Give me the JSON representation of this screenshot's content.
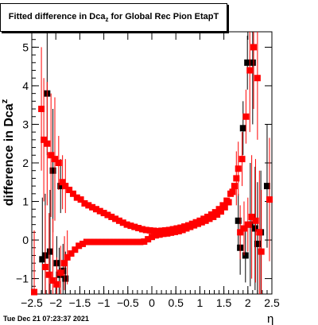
{
  "chart_data": {
    "type": "scatter",
    "title_main": "Fitted difference in Dca",
    "title_sub": "z",
    "title_rest": " for Global Rec Pion EtapT",
    "ylabel_main": "difference in Dca",
    "ylabel_sub": "z",
    "xlabel": "η",
    "xlim": [
      -2.5,
      2.5
    ],
    "ylim": [
      -1.4,
      5.4
    ],
    "xticks": [
      "−2.5",
      "−2",
      "−1.5",
      "−1",
      "−0.5",
      "0",
      "0.5",
      "1",
      "1.5",
      "2",
      "2.5"
    ],
    "yticks": [
      "−1",
      "0",
      "1",
      "2",
      "3",
      "4",
      "5"
    ],
    "grid": false,
    "colors": {
      "black_series": "#000000",
      "red_series": "#ff0000"
    },
    "series": [
      {
        "marker": "square",
        "color": "#000000",
        "points": [
          [
            -2.28,
            -0.5
          ],
          [
            -2.22,
            -0.4
          ],
          [
            -2.18,
            3.8
          ],
          [
            -2.12,
            -0.3
          ],
          [
            -2.06,
            1.8
          ],
          [
            -1.98,
            -0.6
          ],
          [
            -1.93,
            -0.9
          ],
          [
            -1.9,
            1.4
          ],
          [
            -1.85,
            -0.8
          ],
          [
            -1.8,
            -1.0
          ],
          [
            1.8,
            0.5
          ],
          [
            1.84,
            -0.2
          ],
          [
            1.9,
            2.9
          ],
          [
            1.95,
            -0.4
          ],
          [
            1.99,
            4.6
          ],
          [
            2.05,
            0.4
          ],
          [
            2.1,
            4.6
          ],
          [
            2.15,
            0.3
          ],
          [
            2.2,
            -0.1
          ],
          [
            2.27,
            0.2
          ],
          [
            2.4,
            1.4
          ]
        ]
      },
      {
        "marker": "square",
        "color": "#ff0000",
        "points": [
          [
            -2.45,
            -1.35
          ],
          [
            -2.3,
            3.4
          ],
          [
            -2.25,
            2.6
          ],
          [
            -2.22,
            -0.7
          ],
          [
            -2.18,
            2.5
          ],
          [
            -2.14,
            -0.9
          ],
          [
            -2.1,
            2.2
          ],
          [
            -2.06,
            -1.05
          ],
          [
            -2.02,
            2.1
          ],
          [
            -1.98,
            -1.15
          ],
          [
            -1.94,
            2.0
          ],
          [
            -1.9,
            -0.85
          ],
          [
            -1.86,
            1.5
          ],
          [
            -1.82,
            -0.6
          ],
          [
            -1.8,
            1.4
          ],
          [
            -1.76,
            -0.45
          ],
          [
            -1.72,
            1.3
          ],
          [
            -1.68,
            -0.35
          ],
          [
            -1.64,
            1.2
          ],
          [
            -1.6,
            -0.25
          ],
          [
            -1.56,
            1.1
          ],
          [
            -1.52,
            -0.15
          ],
          [
            -1.48,
            1.05
          ],
          [
            -1.44,
            -0.1
          ],
          [
            -1.4,
            0.95
          ],
          [
            -1.36,
            -0.05
          ],
          [
            -1.32,
            0.9
          ],
          [
            -1.28,
            -0.05
          ],
          [
            -1.24,
            0.85
          ],
          [
            -1.2,
            -0.05
          ],
          [
            -1.16,
            0.8
          ],
          [
            -1.12,
            -0.05
          ],
          [
            -1.08,
            0.75
          ],
          [
            -1.04,
            -0.05
          ],
          [
            -1.0,
            0.7
          ],
          [
            -0.96,
            -0.05
          ],
          [
            -0.92,
            0.65
          ],
          [
            -0.88,
            -0.05
          ],
          [
            -0.84,
            0.6
          ],
          [
            -0.8,
            -0.05
          ],
          [
            -0.76,
            0.55
          ],
          [
            -0.72,
            -0.05
          ],
          [
            -0.68,
            0.5
          ],
          [
            -0.64,
            -0.05
          ],
          [
            -0.6,
            0.45
          ],
          [
            -0.56,
            -0.05
          ],
          [
            -0.52,
            0.4
          ],
          [
            -0.48,
            -0.05
          ],
          [
            -0.44,
            0.37
          ],
          [
            -0.4,
            -0.05
          ],
          [
            -0.36,
            0.34
          ],
          [
            -0.32,
            -0.05
          ],
          [
            -0.28,
            0.31
          ],
          [
            -0.24,
            -0.05
          ],
          [
            -0.2,
            0.28
          ],
          [
            -0.16,
            -0.04
          ],
          [
            -0.12,
            0.26
          ],
          [
            -0.08,
            0.02
          ],
          [
            -0.04,
            0.25
          ],
          [
            0.0,
            0.08
          ],
          [
            0.04,
            0.24
          ],
          [
            0.08,
            0.12
          ],
          [
            0.12,
            0.23
          ],
          [
            0.16,
            0.14
          ],
          [
            0.2,
            0.24
          ],
          [
            0.24,
            0.16
          ],
          [
            0.28,
            0.25
          ],
          [
            0.32,
            0.17
          ],
          [
            0.36,
            0.26
          ],
          [
            0.4,
            0.19
          ],
          [
            0.44,
            0.28
          ],
          [
            0.48,
            0.21
          ],
          [
            0.52,
            0.3
          ],
          [
            0.56,
            0.23
          ],
          [
            0.6,
            0.32
          ],
          [
            0.64,
            0.26
          ],
          [
            0.68,
            0.35
          ],
          [
            0.72,
            0.3
          ],
          [
            0.76,
            0.38
          ],
          [
            0.8,
            0.34
          ],
          [
            0.84,
            0.42
          ],
          [
            0.88,
            0.38
          ],
          [
            0.92,
            0.46
          ],
          [
            0.96,
            0.42
          ],
          [
            1.0,
            0.5
          ],
          [
            1.04,
            0.46
          ],
          [
            1.08,
            0.55
          ],
          [
            1.12,
            0.5
          ],
          [
            1.16,
            0.6
          ],
          [
            1.2,
            0.55
          ],
          [
            1.24,
            0.66
          ],
          [
            1.28,
            0.6
          ],
          [
            1.32,
            0.72
          ],
          [
            1.36,
            0.66
          ],
          [
            1.4,
            0.8
          ],
          [
            1.44,
            0.74
          ],
          [
            1.48,
            0.9
          ],
          [
            1.52,
            0.85
          ],
          [
            1.56,
            1.02
          ],
          [
            1.6,
            0.98
          ],
          [
            1.64,
            1.2
          ],
          [
            1.68,
            1.25
          ],
          [
            1.72,
            1.4
          ],
          [
            1.76,
            1.6
          ],
          [
            1.8,
            1.85
          ],
          [
            1.84,
            0.2
          ],
          [
            1.88,
            2.1
          ],
          [
            1.92,
            0.3
          ],
          [
            1.96,
            3.2
          ],
          [
            2.0,
            0.4
          ],
          [
            2.04,
            4.4
          ],
          [
            2.08,
            0.6
          ],
          [
            2.12,
            5.0
          ],
          [
            2.16,
            0.5
          ],
          [
            2.2,
            4.2
          ],
          [
            2.24,
            0.2
          ],
          [
            2.28,
            -0.3
          ],
          [
            2.45,
            1.05
          ]
        ]
      }
    ],
    "timestamp": "Tue Dec 21 07:23:37 2021"
  }
}
